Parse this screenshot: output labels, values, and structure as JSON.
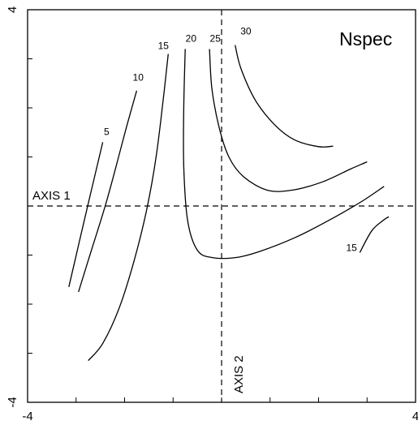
{
  "chart_data": {
    "type": "line",
    "title": "Nspec",
    "xlabel": "AXIS 1",
    "ylabel": "AXIS 2",
    "xlim": [
      -4,
      4
    ],
    "ylim": [
      -4,
      4
    ],
    "x_tick_labels": [
      "-4",
      "4"
    ],
    "y_tick_labels": [
      "-4",
      "4"
    ],
    "grid": false,
    "reference_lines": [
      {
        "orientation": "horizontal",
        "value": 0,
        "style": "dashed"
      },
      {
        "orientation": "vertical",
        "value": 0,
        "style": "dashed"
      }
    ],
    "series": [
      {
        "name": "5",
        "points": [
          [
            -3.15,
            -1.65
          ],
          [
            -2.95,
            -0.8
          ],
          [
            -2.75,
            0.05
          ],
          [
            -2.45,
            1.3
          ]
        ]
      },
      {
        "name": "10",
        "points": [
          [
            -2.95,
            -1.75
          ],
          [
            -2.7,
            -0.95
          ],
          [
            -2.4,
            0
          ],
          [
            -2.15,
            0.9
          ],
          [
            -1.95,
            1.65
          ],
          [
            -1.75,
            2.35
          ]
        ]
      },
      {
        "name": "15",
        "points": [
          [
            -2.75,
            -3.15
          ],
          [
            -2.45,
            -2.8
          ],
          [
            -2.1,
            -2.05
          ],
          [
            -1.8,
            -1.1
          ],
          [
            -1.55,
            -0.1
          ],
          [
            -1.35,
            1.0
          ],
          [
            -1.2,
            2.2
          ],
          [
            -1.1,
            3.1
          ]
        ]
      },
      {
        "name": "20",
        "points": [
          [
            -0.75,
            3.2
          ],
          [
            -0.78,
            2.0
          ],
          [
            -0.78,
            0.8
          ],
          [
            -0.7,
            -0.3
          ],
          [
            -0.5,
            -0.9
          ],
          [
            -0.2,
            -1.05
          ],
          [
            0.3,
            -1.05
          ],
          [
            0.8,
            -0.92
          ],
          [
            1.5,
            -0.65
          ],
          [
            2.2,
            -0.3
          ],
          [
            2.9,
            0.1
          ],
          [
            3.35,
            0.4
          ]
        ]
      },
      {
        "name": "25",
        "points": [
          [
            -0.25,
            3.2
          ],
          [
            -0.2,
            2.4
          ],
          [
            -0.05,
            1.6
          ],
          [
            0.15,
            1.0
          ],
          [
            0.45,
            0.6
          ],
          [
            0.95,
            0.32
          ],
          [
            1.5,
            0.33
          ],
          [
            2.1,
            0.5
          ],
          [
            2.65,
            0.75
          ],
          [
            3.0,
            0.9
          ]
        ]
      },
      {
        "name": "30",
        "points": [
          [
            0.28,
            3.28
          ],
          [
            0.4,
            2.8
          ],
          [
            0.7,
            2.15
          ],
          [
            1.1,
            1.65
          ],
          [
            1.5,
            1.35
          ],
          [
            2.0,
            1.21
          ],
          [
            2.3,
            1.22
          ]
        ]
      },
      {
        "name": "15",
        "points": [
          [
            2.85,
            -0.95
          ],
          [
            3.1,
            -0.5
          ],
          [
            3.35,
            -0.28
          ],
          [
            3.45,
            -0.22
          ]
        ]
      }
    ],
    "contour_label_anchor": [
      [
        -2.37,
        1.45
      ],
      [
        -1.72,
        2.55
      ],
      [
        -1.2,
        3.2
      ],
      [
        -0.63,
        3.35
      ],
      [
        -0.13,
        3.35
      ],
      [
        0.5,
        3.5
      ],
      [
        2.68,
        -0.92
      ]
    ]
  }
}
